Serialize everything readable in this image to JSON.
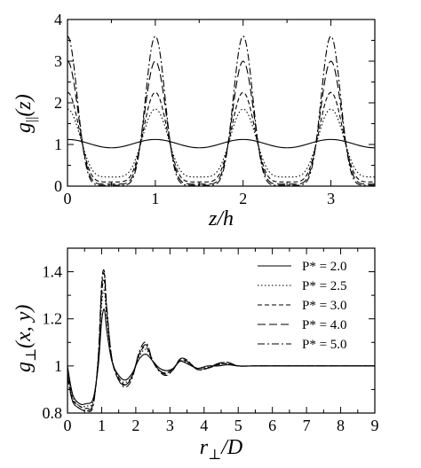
{
  "chart_data": [
    {
      "type": "line",
      "ylabel": "g_||(z)",
      "xlabel": "z/h",
      "xlim": [
        0,
        3.5
      ],
      "ylim": [
        0,
        4
      ],
      "xticks": [
        "0",
        "1",
        "2",
        "3"
      ],
      "yticks": [
        "0",
        "1",
        "2",
        "3",
        "4"
      ],
      "period": 1.0,
      "peak_positions": [
        0,
        1,
        2,
        3
      ],
      "series": [
        {
          "style": "solid",
          "peak": 1.12,
          "trough": 0.92
        },
        {
          "style": "dotted",
          "peak": 1.85,
          "trough": 0.22
        },
        {
          "style": "dashed",
          "peak": 2.25,
          "trough": 0.1
        },
        {
          "style": "longdash",
          "peak": 3.0,
          "trough": 0.05
        },
        {
          "style": "dashdot",
          "peak": 3.6,
          "trough": 0.02
        }
      ]
    },
    {
      "type": "line",
      "ylabel": "g⊥(x, y)",
      "xlabel": "r⊥/D",
      "xlim": [
        0,
        9
      ],
      "ylim": [
        0.8,
        1.5
      ],
      "xticks": [
        "0",
        "1",
        "2",
        "3",
        "4",
        "5",
        "6",
        "7",
        "8",
        "9"
      ],
      "yticks": [
        "0.8",
        "1",
        "1.2",
        "1.4"
      ],
      "legend_position": "top-right",
      "series": [
        {
          "name": "P* = 2.0",
          "style": "solid",
          "x": [
            0,
            0.15,
            0.35,
            0.55,
            0.75,
            0.9,
            1.0,
            1.08,
            1.15,
            1.3,
            1.5,
            1.7,
            1.9,
            2.1,
            2.3,
            2.5,
            2.7,
            2.9,
            3.1,
            3.3,
            3.5,
            3.8,
            4.1,
            4.4,
            4.7,
            5.0,
            5.5,
            6,
            7,
            8,
            9
          ],
          "y": [
            1.0,
            0.88,
            0.84,
            0.84,
            0.86,
            1.0,
            1.19,
            1.24,
            1.15,
            1.02,
            0.96,
            0.94,
            0.97,
            1.03,
            1.05,
            1.02,
            0.99,
            0.98,
            0.99,
            1.02,
            1.01,
            0.99,
            1.0,
            1.0,
            1.005,
            1.0,
            1.0,
            1.0,
            1.0,
            1.0,
            1.0
          ]
        },
        {
          "name": "P* = 2.5",
          "style": "dotted",
          "x": [
            0,
            0.15,
            0.35,
            0.55,
            0.75,
            0.9,
            1.0,
            1.08,
            1.15,
            1.3,
            1.5,
            1.7,
            1.9,
            2.1,
            2.3,
            2.5,
            2.7,
            2.9,
            3.1,
            3.3,
            3.5,
            3.8,
            4.1,
            4.4,
            4.7,
            5.0,
            5.5,
            6,
            7,
            8,
            9
          ],
          "y": [
            0.98,
            0.87,
            0.83,
            0.83,
            0.85,
            1.02,
            1.26,
            1.32,
            1.2,
            1.03,
            0.95,
            0.93,
            0.96,
            1.04,
            1.07,
            1.02,
            0.98,
            0.97,
            0.99,
            1.02,
            1.015,
            0.99,
            0.995,
            1.005,
            1.01,
            1.0,
            1.0,
            1.0,
            1.0,
            1.0,
            1.0
          ]
        },
        {
          "name": "P* = 3.0",
          "style": "dashed",
          "x": [
            0,
            0.15,
            0.35,
            0.55,
            0.75,
            0.9,
            1.0,
            1.08,
            1.15,
            1.3,
            1.5,
            1.7,
            1.9,
            2.1,
            2.3,
            2.5,
            2.7,
            2.9,
            3.1,
            3.3,
            3.5,
            3.8,
            4.1,
            4.4,
            4.7,
            5.0,
            5.5,
            6,
            7,
            8,
            9
          ],
          "y": [
            0.97,
            0.86,
            0.83,
            0.82,
            0.84,
            1.02,
            1.3,
            1.36,
            1.22,
            1.03,
            0.95,
            0.92,
            0.96,
            1.05,
            1.08,
            1.02,
            0.98,
            0.97,
            0.99,
            1.025,
            1.02,
            0.99,
            0.99,
            1.005,
            1.01,
            1.0,
            1.0,
            1.0,
            1.0,
            1.0,
            1.0
          ]
        },
        {
          "name": "P* = 4.0",
          "style": "longdash",
          "x": [
            0,
            0.15,
            0.35,
            0.55,
            0.75,
            0.9,
            1.0,
            1.08,
            1.15,
            1.3,
            1.5,
            1.7,
            1.9,
            2.1,
            2.3,
            2.5,
            2.7,
            2.9,
            3.1,
            3.3,
            3.5,
            3.8,
            4.1,
            4.4,
            4.7,
            5.0,
            5.5,
            6,
            7,
            8,
            9
          ],
          "y": [
            0.96,
            0.85,
            0.82,
            0.81,
            0.84,
            1.03,
            1.33,
            1.39,
            1.24,
            1.03,
            0.94,
            0.92,
            0.96,
            1.05,
            1.09,
            1.02,
            0.98,
            0.965,
            0.985,
            1.03,
            1.02,
            0.985,
            0.99,
            1.01,
            1.015,
            1.0,
            1.0,
            1.0,
            1.0,
            1.0,
            1.0
          ]
        },
        {
          "name": "P* = 5.0",
          "style": "dashdot",
          "x": [
            0,
            0.15,
            0.35,
            0.55,
            0.75,
            0.9,
            1.0,
            1.08,
            1.15,
            1.3,
            1.5,
            1.7,
            1.9,
            2.1,
            2.3,
            2.5,
            2.7,
            2.9,
            3.1,
            3.3,
            3.5,
            3.8,
            4.1,
            4.4,
            4.7,
            5.0,
            5.5,
            6,
            7,
            8,
            9
          ],
          "y": [
            0.95,
            0.85,
            0.82,
            0.81,
            0.83,
            1.04,
            1.35,
            1.4,
            1.25,
            1.03,
            0.94,
            0.91,
            0.95,
            1.06,
            1.1,
            1.02,
            0.975,
            0.96,
            0.985,
            1.03,
            1.025,
            0.985,
            0.99,
            1.01,
            1.015,
            1.0,
            1.0,
            1.0,
            1.0,
            1.0,
            1.0
          ]
        }
      ]
    }
  ]
}
